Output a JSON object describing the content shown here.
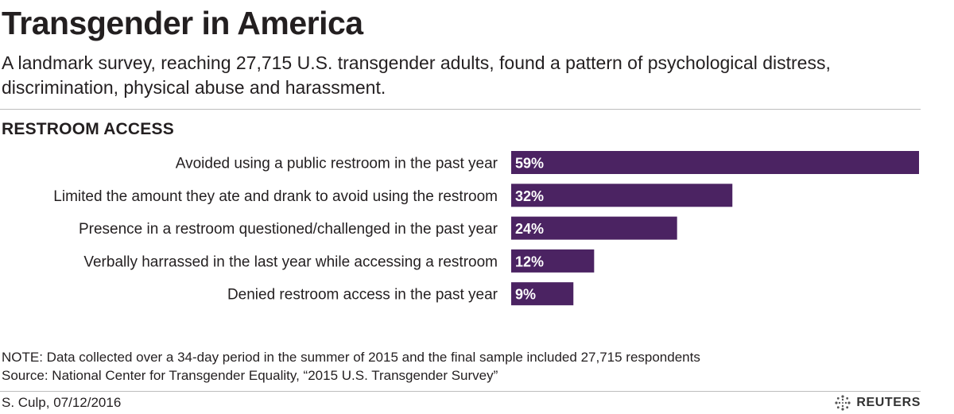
{
  "title": "Transgender in America",
  "subtitle": "A landmark survey, reaching 27,715 U.S. transgender adults, found a pattern of psychological distress, discrimination, physical abuse and harassment.",
  "section_title": "RESTROOM ACCESS",
  "chart_data": {
    "type": "bar",
    "orientation": "horizontal",
    "title": "RESTROOM ACCESS",
    "categories": [
      "Avoided using a public restroom in the past year",
      "Limited the amount they ate and drank to avoid using the restroom",
      "Presence in a restroom questioned/challenged in the past year",
      "Verbally harrassed in the last year while accessing a restroom",
      "Denied restroom access in the past year"
    ],
    "values": [
      59,
      32,
      24,
      12,
      9
    ],
    "value_labels": [
      "59%",
      "32%",
      "24%",
      "12%",
      "9%"
    ],
    "xlim": [
      0,
      59
    ],
    "grid": false,
    "bar_color": "#4b2362"
  },
  "note": "NOTE: Data collected over a 34-day period in the summer of 2015 and the final sample included 27,715 respondents",
  "source": "Source:  National Center for Transgender Equality, “2015 U.S. Transgender Survey”",
  "byline": "S. Culp,  07/12/2016",
  "brand": "REUTERS"
}
